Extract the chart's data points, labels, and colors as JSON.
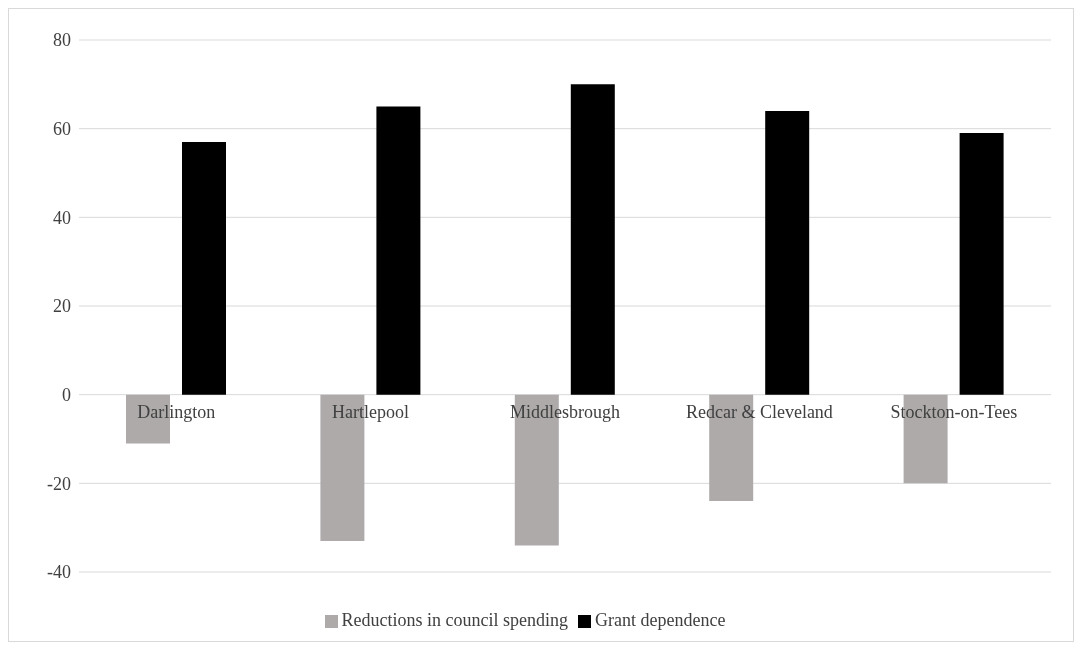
{
  "chart_data": {
    "type": "bar",
    "categories": [
      "Darlington",
      "Hartlepool",
      "Middlesbrough",
      "Redcar & Cleveland",
      "Stockton-on-Tees"
    ],
    "series": [
      {
        "name": "Reductions in council spending",
        "color": "#aeaaaa",
        "values": [
          -11,
          -33,
          -34,
          -24,
          -20
        ]
      },
      {
        "name": "Grant dependence",
        "color": "#000000",
        "values": [
          57,
          65,
          70,
          64,
          59
        ]
      }
    ],
    "ylim": [
      -40,
      80
    ],
    "yticks": [
      -40,
      -20,
      0,
      20,
      40,
      60,
      80
    ],
    "grid": "y",
    "legend": "bottom"
  }
}
